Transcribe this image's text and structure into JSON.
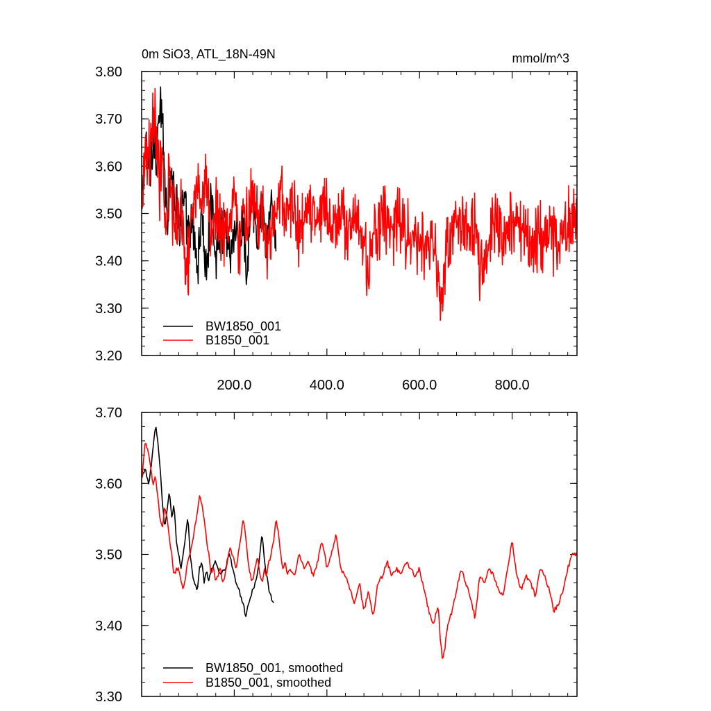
{
  "chart_data": [
    {
      "type": "line",
      "title": "0m SiO3, ATL_18N-49N",
      "units": "mmol/m^3",
      "xlim": [
        0,
        940
      ],
      "ylim": [
        3.2,
        3.8
      ],
      "xticks": [
        200,
        400,
        600,
        800
      ],
      "xtick_labels": [
        "200.0",
        "400.0",
        "600.0",
        "800.0"
      ],
      "yticks": [
        3.2,
        3.3,
        3.4,
        3.5,
        3.6,
        3.7,
        3.8
      ],
      "ytick_labels": [
        "3.20",
        "3.30",
        "3.40",
        "3.50",
        "3.60",
        "3.70",
        "3.80"
      ],
      "legend_position": "bottom-left",
      "series": [
        {
          "name": "BW1850_001",
          "color": "#000000",
          "x": [
            1,
            6,
            12,
            18,
            25,
            32,
            40,
            48,
            55,
            62,
            70,
            80,
            90,
            100,
            110,
            120,
            130,
            140,
            150,
            160,
            170,
            180,
            190,
            200,
            210,
            220,
            226,
            232,
            240,
            250,
            260,
            270,
            280,
            290
          ],
          "y": [
            3.51,
            3.62,
            3.64,
            3.59,
            3.67,
            3.6,
            3.74,
            3.63,
            3.49,
            3.59,
            3.55,
            3.48,
            3.53,
            3.45,
            3.47,
            3.39,
            3.5,
            3.36,
            3.54,
            3.42,
            3.45,
            3.5,
            3.41,
            3.47,
            3.43,
            3.49,
            3.35,
            3.45,
            3.52,
            3.43,
            3.54,
            3.41,
            3.55,
            3.42
          ],
          "noise_amplitude": 0.045
        },
        {
          "name": "B1850_001",
          "color": "#ff0000",
          "x": [
            1,
            8,
            15,
            22,
            30,
            38,
            45,
            50,
            60,
            70,
            80,
            90,
            95,
            110,
            120,
            130,
            140,
            150,
            160,
            170,
            180,
            190,
            200,
            210,
            220,
            230,
            240,
            250,
            260,
            270,
            280,
            290,
            300,
            310,
            320,
            340,
            360,
            380,
            400,
            410,
            420,
            440,
            460,
            480,
            490,
            500,
            520,
            540,
            560,
            580,
            600,
            620,
            640,
            648,
            660,
            680,
            700,
            720,
            736,
            760,
            780,
            800,
            820,
            840,
            860,
            880,
            900,
            920,
            940
          ],
          "y": [
            3.55,
            3.66,
            3.62,
            3.68,
            3.7,
            3.55,
            3.62,
            3.47,
            3.58,
            3.48,
            3.52,
            3.49,
            3.35,
            3.49,
            3.55,
            3.5,
            3.6,
            3.45,
            3.53,
            3.48,
            3.46,
            3.5,
            3.55,
            3.44,
            3.5,
            3.47,
            3.57,
            3.48,
            3.49,
            3.42,
            3.47,
            3.5,
            3.55,
            3.48,
            3.52,
            3.46,
            3.5,
            3.48,
            3.52,
            3.44,
            3.5,
            3.47,
            3.48,
            3.44,
            3.35,
            3.46,
            3.49,
            3.47,
            3.48,
            3.46,
            3.42,
            3.45,
            3.4,
            3.31,
            3.44,
            3.47,
            3.48,
            3.47,
            3.35,
            3.48,
            3.46,
            3.48,
            3.47,
            3.44,
            3.45,
            3.46,
            3.44,
            3.48,
            3.5
          ],
          "noise_amplitude": 0.06
        }
      ]
    },
    {
      "type": "line",
      "xlim": [
        0,
        940
      ],
      "ylim": [
        3.3,
        3.7
      ],
      "yticks": [
        3.3,
        3.4,
        3.5,
        3.6,
        3.7
      ],
      "ytick_labels": [
        "3.30",
        "3.40",
        "3.50",
        "3.60",
        "3.70"
      ],
      "legend_position": "bottom-left",
      "series": [
        {
          "name": "BW1850_001, smoothed",
          "color": "#000000",
          "x": [
            1,
            8,
            15,
            20,
            25,
            30,
            35,
            40,
            45,
            50,
            55,
            60,
            65,
            70,
            75,
            80,
            85,
            90,
            95,
            100,
            105,
            110,
            115,
            120,
            125,
            130,
            135,
            140,
            145,
            150,
            160,
            170,
            180,
            190,
            200,
            210,
            220,
            225,
            230,
            240,
            250,
            255,
            260,
            265,
            270,
            275,
            280,
            285
          ],
          "y": [
            3.61,
            3.62,
            3.6,
            3.62,
            3.65,
            3.68,
            3.66,
            3.62,
            3.57,
            3.54,
            3.56,
            3.59,
            3.55,
            3.57,
            3.52,
            3.5,
            3.48,
            3.5,
            3.53,
            3.55,
            3.5,
            3.47,
            3.46,
            3.45,
            3.48,
            3.49,
            3.46,
            3.48,
            3.46,
            3.48,
            3.49,
            3.47,
            3.48,
            3.5,
            3.47,
            3.45,
            3.43,
            3.41,
            3.43,
            3.45,
            3.47,
            3.5,
            3.53,
            3.49,
            3.47,
            3.45,
            3.44,
            3.43
          ]
        },
        {
          "name": "B1850_001, smoothed",
          "color": "#ff0000",
          "x": [
            1,
            8,
            15,
            20,
            25,
            30,
            35,
            40,
            45,
            50,
            55,
            60,
            65,
            70,
            75,
            80,
            85,
            90,
            95,
            100,
            105,
            110,
            115,
            120,
            125,
            130,
            135,
            140,
            145,
            150,
            155,
            160,
            165,
            170,
            175,
            180,
            185,
            190,
            195,
            200,
            205,
            210,
            215,
            220,
            225,
            230,
            235,
            240,
            245,
            250,
            255,
            260,
            265,
            270,
            275,
            280,
            285,
            290,
            295,
            300,
            305,
            310,
            315,
            320,
            330,
            340,
            350,
            360,
            370,
            380,
            390,
            400,
            410,
            420,
            430,
            440,
            450,
            460,
            470,
            480,
            490,
            500,
            510,
            520,
            530,
            540,
            550,
            560,
            570,
            580,
            590,
            600,
            610,
            620,
            630,
            640,
            645,
            650,
            655,
            660,
            670,
            680,
            690,
            700,
            710,
            720,
            730,
            740,
            750,
            760,
            770,
            780,
            790,
            800,
            810,
            820,
            830,
            840,
            850,
            860,
            870,
            880,
            890,
            900,
            910,
            920,
            930,
            940
          ],
          "y": [
            3.61,
            3.66,
            3.64,
            3.62,
            3.6,
            3.61,
            3.58,
            3.55,
            3.54,
            3.57,
            3.55,
            3.52,
            3.5,
            3.47,
            3.48,
            3.48,
            3.46,
            3.45,
            3.47,
            3.49,
            3.5,
            3.52,
            3.54,
            3.56,
            3.58,
            3.57,
            3.55,
            3.52,
            3.5,
            3.47,
            3.48,
            3.46,
            3.47,
            3.48,
            3.46,
            3.47,
            3.49,
            3.51,
            3.5,
            3.49,
            3.48,
            3.51,
            3.53,
            3.55,
            3.52,
            3.49,
            3.47,
            3.46,
            3.48,
            3.5,
            3.47,
            3.46,
            3.48,
            3.47,
            3.49,
            3.5,
            3.52,
            3.55,
            3.53,
            3.5,
            3.48,
            3.49,
            3.47,
            3.48,
            3.47,
            3.5,
            3.48,
            3.49,
            3.47,
            3.49,
            3.52,
            3.48,
            3.5,
            3.53,
            3.48,
            3.47,
            3.45,
            3.43,
            3.46,
            3.42,
            3.45,
            3.41,
            3.46,
            3.47,
            3.49,
            3.47,
            3.48,
            3.47,
            3.49,
            3.48,
            3.47,
            3.48,
            3.45,
            3.42,
            3.4,
            3.43,
            3.38,
            3.35,
            3.37,
            3.4,
            3.42,
            3.45,
            3.48,
            3.46,
            3.44,
            3.41,
            3.47,
            3.46,
            3.48,
            3.47,
            3.45,
            3.44,
            3.48,
            3.52,
            3.47,
            3.45,
            3.47,
            3.46,
            3.44,
            3.48,
            3.47,
            3.45,
            3.42,
            3.43,
            3.45,
            3.48,
            3.5,
            3.5
          ]
        }
      ]
    }
  ]
}
